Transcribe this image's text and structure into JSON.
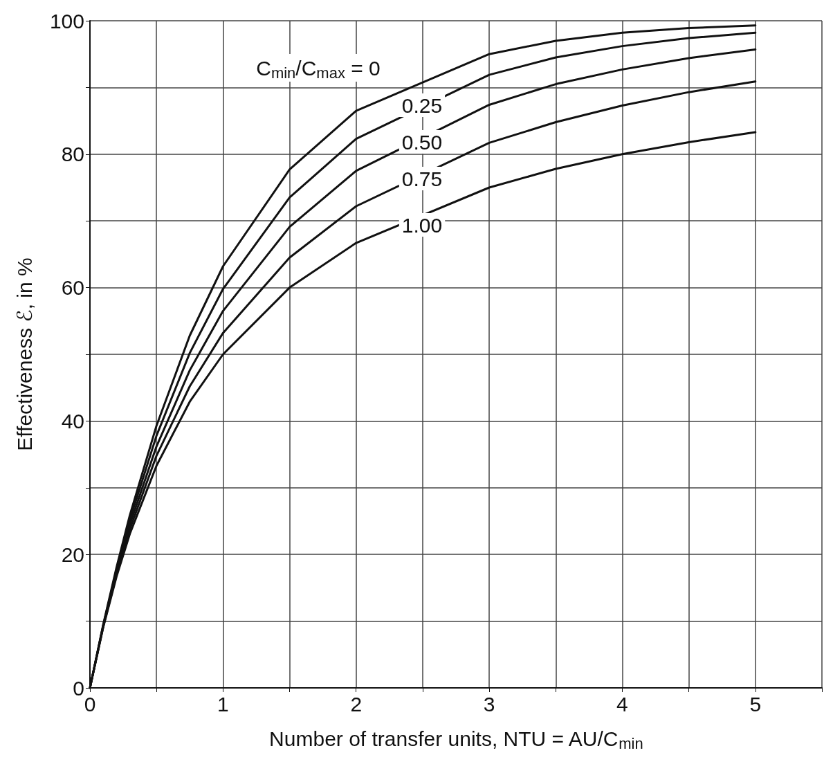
{
  "chart_data": {
    "type": "line",
    "xlabel": "Number of transfer units, NTU = AU/C$_{min}$",
    "ylabel": "Effectiveness ℰ, in %",
    "x": [
      0,
      0.1,
      0.2,
      0.3,
      0.5,
      0.75,
      1,
      1.5,
      2,
      3,
      3.5,
      4,
      4.5,
      5
    ],
    "series": [
      {
        "color": "#111111",
        "values": [
          0,
          9.5,
          18.1,
          25.9,
          39.3,
          52.8,
          63.2,
          77.7,
          86.5,
          95.0,
          97.0,
          98.2,
          98.9,
          99.3
        ]
      },
      {
        "color": "#111111",
        "values": [
          0,
          9.4,
          17.7,
          25.2,
          37.8,
          50.2,
          59.8,
          73.5,
          82.3,
          91.9,
          94.5,
          96.2,
          97.4,
          98.2
        ]
      },
      {
        "color": "#111111",
        "values": [
          0,
          9.3,
          17.4,
          24.5,
          36.2,
          47.6,
          56.5,
          69.1,
          77.5,
          87.4,
          90.5,
          92.7,
          94.4,
          95.7
        ]
      },
      {
        "color": "#111111",
        "values": [
          0,
          9.2,
          17.0,
          23.8,
          34.8,
          45.2,
          53.2,
          64.5,
          72.2,
          81.7,
          84.8,
          87.3,
          89.3,
          90.9
        ]
      },
      {
        "color": "#111111",
        "values": [
          0,
          9.1,
          16.7,
          23.1,
          33.3,
          42.9,
          50.0,
          60.0,
          66.7,
          75.0,
          77.8,
          80.0,
          81.8,
          83.3
        ]
      }
    ],
    "annotations": [
      "C$_{min}$/C$_{max}$ = 0",
      "0.25",
      "0.50",
      "0.75",
      "1.00"
    ],
    "xlim": [
      0,
      5.5
    ],
    "ylim": [
      0,
      100
    ],
    "xticks": [
      0,
      {
        "value": 0.5,
        "label": null
      },
      1,
      {
        "value": 1.5,
        "label": null
      },
      2,
      {
        "value": 2.5,
        "label": null
      },
      3,
      {
        "value": 3.5,
        "label": null
      },
      4,
      {
        "value": 4.5,
        "label": null
      },
      5,
      {
        "value": 5.5,
        "label": null
      }
    ],
    "yticks": [
      0,
      {
        "value": 10,
        "label": null
      },
      20,
      {
        "value": 30,
        "label": null
      },
      40,
      {
        "value": 50,
        "label": null
      },
      60,
      {
        "value": 70,
        "label": null
      },
      80,
      {
        "value": 90,
        "label": null
      },
      100
    ],
    "grid": true,
    "marker": "none",
    "line_style": "solid"
  }
}
